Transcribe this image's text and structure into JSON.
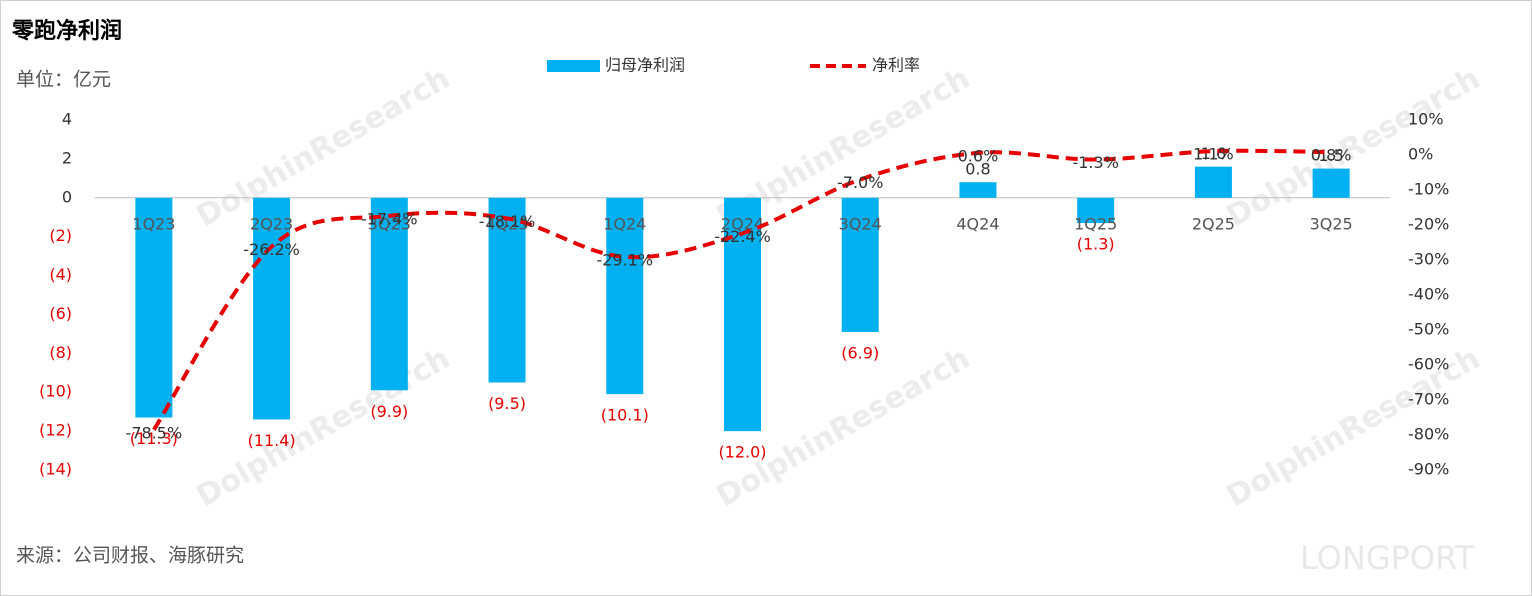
{
  "chart_data": {
    "type": "bar_line",
    "title": "零跑净利润",
    "unit_label": "单位：亿元",
    "source": "来源：公司财报、海豚研究",
    "watermark": [
      "DolphinResearch",
      "LONGPORT"
    ],
    "categories": [
      "1Q23",
      "2Q23",
      "3Q23",
      "4Q23",
      "1Q24",
      "2Q24",
      "3Q24",
      "4Q24",
      "1Q25",
      "2Q25",
      "3Q25"
    ],
    "series": [
      {
        "name": "归母净利润",
        "color": "#00b0f0",
        "type": "bar",
        "values": [
          -11.3,
          -11.4,
          -9.9,
          -9.5,
          -10.1,
          -12.0,
          -6.9,
          0.8,
          -1.3,
          1.6,
          1.5
        ],
        "value_labels": [
          "(11.3)",
          "(11.4)",
          "(9.9)",
          "(9.5)",
          "(10.1)",
          "(12.0)",
          "(6.9)",
          "0.8",
          "(1.3)",
          "1.6",
          "1.5"
        ]
      },
      {
        "name": "净利率",
        "color": "#e60000",
        "type": "line",
        "axis": "y2",
        "values": [
          -78.5,
          -26.2,
          -17.4,
          -18.1,
          -29.1,
          -22.4,
          -7.0,
          0.6,
          -1.3,
          1.1,
          0.8
        ],
        "value_labels": [
          "-78.5%",
          "-26.2%",
          "-17.4%",
          "-18.1%",
          "-29.1%",
          "-22.4%",
          "-7.0%",
          "0.6%",
          "-1.3%",
          "1.1%",
          "0.8%"
        ]
      }
    ],
    "ylim": [
      -14,
      4
    ],
    "yticks": [
      4,
      2,
      0,
      {
        "value": -2,
        "label": "(2)"
      },
      {
        "value": -4,
        "label": "(4)"
      },
      {
        "value": -6,
        "label": "(6)"
      },
      {
        "value": -8,
        "label": "(8)"
      },
      {
        "value": -10,
        "label": "(10)"
      },
      {
        "value": -12,
        "label": "(12)"
      },
      {
        "value": -14,
        "label": "(14)"
      }
    ],
    "y2lim": [
      -90,
      10
    ],
    "y2ticks": [
      {
        "value": 10,
        "label": "10%"
      },
      {
        "value": 0,
        "label": "0%"
      },
      {
        "value": -10,
        "label": "-10%"
      },
      {
        "value": -20,
        "label": "-20%"
      },
      {
        "value": -30,
        "label": "-30%"
      },
      {
        "value": -40,
        "label": "-40%"
      },
      {
        "value": -50,
        "label": "-50%"
      },
      {
        "value": -60,
        "label": "-60%"
      },
      {
        "value": -70,
        "label": "-70%"
      },
      {
        "value": -80,
        "label": "-80%"
      },
      {
        "value": -90,
        "label": "-90%"
      }
    ]
  }
}
